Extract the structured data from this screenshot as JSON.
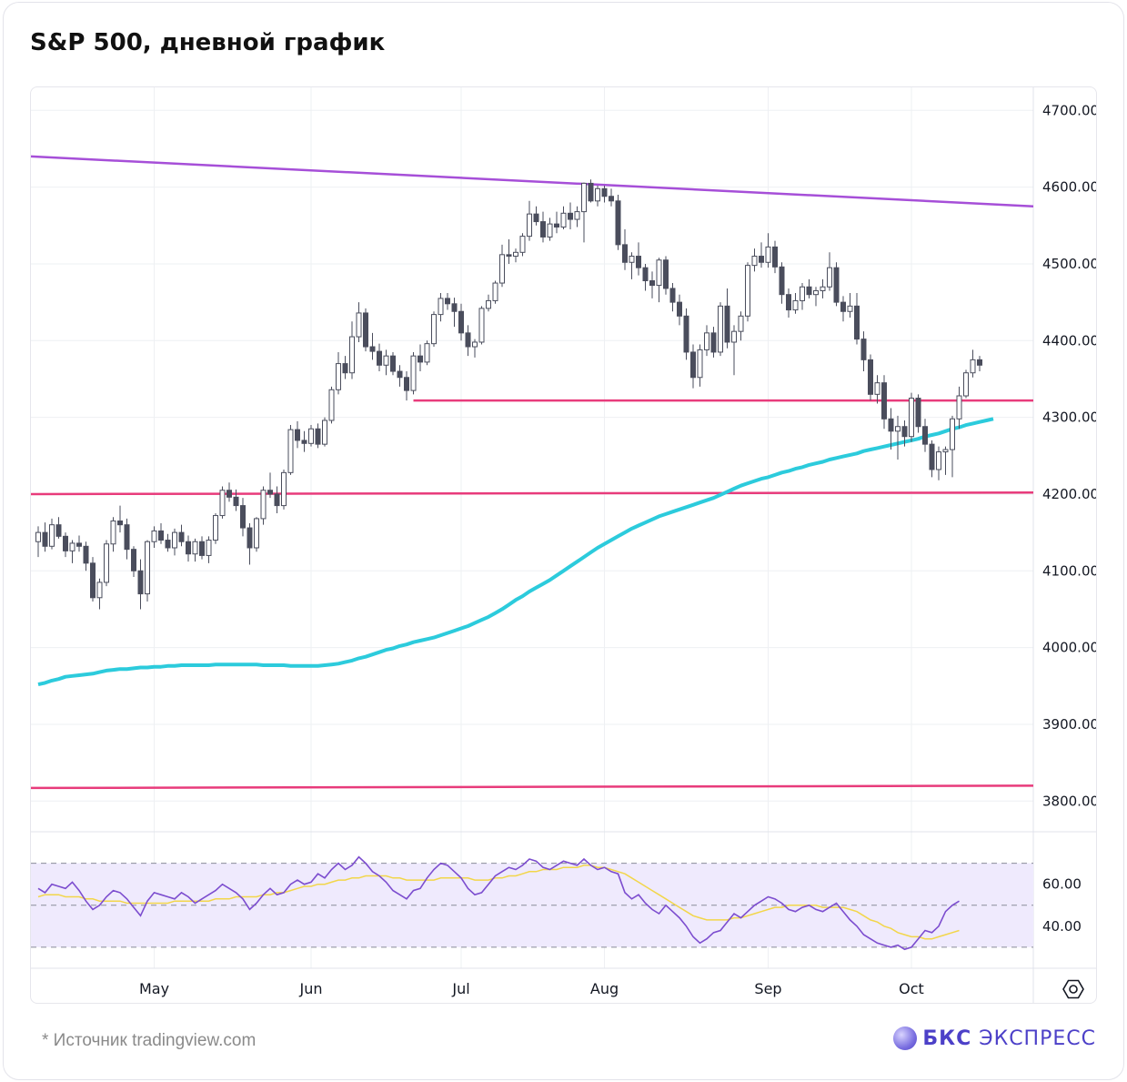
{
  "title": "S&P 500, дневной график",
  "footnote": "*  Источник tradingview.com",
  "brand": {
    "name_bold": "БКС",
    "name_rest": " ЭКСПРЕСС"
  },
  "icons": {
    "settings": "hexagon-gear-icon",
    "brand_logo": "sphere-logo-icon"
  },
  "colors": {
    "up_candle": "#ffffff",
    "down_candle": "#4a4d5c",
    "wick": "#4a4d5c",
    "ma": "#2ccbdc",
    "trend_top": "#a64fd8",
    "support": "#e83b7b",
    "rsi": "#7c4dcf",
    "rsi_ma": "#f2d64a",
    "rsi_band": "#efeafd"
  },
  "chart_data": {
    "type": "candlestick",
    "title": "S&P 500, дневной график",
    "x_labels": [
      "May",
      "Jun",
      "Jul",
      "Aug",
      "Sep",
      "Oct"
    ],
    "x_label_index": [
      17,
      40,
      62,
      83,
      107,
      128
    ],
    "y_ticks": [
      "4700.00",
      "4600.00",
      "4500.00",
      "4400.00",
      "4300.00",
      "4200.00",
      "4100.00",
      "4000.00",
      "3900.00",
      "3800.00"
    ],
    "ylim": [
      3760,
      4730
    ],
    "candles": [
      [
        4138,
        4158,
        4118,
        4150
      ],
      [
        4150,
        4163,
        4125,
        4132
      ],
      [
        4132,
        4168,
        4128,
        4160
      ],
      [
        4160,
        4170,
        4142,
        4145
      ],
      [
        4145,
        4150,
        4118,
        4126
      ],
      [
        4126,
        4140,
        4110,
        4136
      ],
      [
        4136,
        4146,
        4125,
        4132
      ],
      [
        4132,
        4138,
        4100,
        4110
      ],
      [
        4110,
        4118,
        4060,
        4065
      ],
      [
        4065,
        4090,
        4050,
        4085
      ],
      [
        4085,
        4140,
        4080,
        4135
      ],
      [
        4135,
        4170,
        4125,
        4165
      ],
      [
        4165,
        4185,
        4150,
        4160
      ],
      [
        4160,
        4168,
        4115,
        4128
      ],
      [
        4128,
        4132,
        4092,
        4100
      ],
      [
        4100,
        4115,
        4050,
        4070
      ],
      [
        4070,
        4140,
        4060,
        4138
      ],
      [
        4138,
        4158,
        4130,
        4152
      ],
      [
        4152,
        4162,
        4135,
        4140
      ],
      [
        4140,
        4148,
        4125,
        4130
      ],
      [
        4130,
        4155,
        4120,
        4150
      ],
      [
        4150,
        4160,
        4132,
        4138
      ],
      [
        4138,
        4146,
        4112,
        4122
      ],
      [
        4122,
        4142,
        4112,
        4138
      ],
      [
        4138,
        4145,
        4115,
        4120
      ],
      [
        4120,
        4145,
        4110,
        4140
      ],
      [
        4140,
        4175,
        4135,
        4172
      ],
      [
        4172,
        4210,
        4168,
        4205
      ],
      [
        4205,
        4215,
        4190,
        4196
      ],
      [
        4196,
        4206,
        4178,
        4185
      ],
      [
        4185,
        4195,
        4145,
        4156
      ],
      [
        4156,
        4162,
        4108,
        4130
      ],
      [
        4130,
        4170,
        4125,
        4168
      ],
      [
        4168,
        4210,
        4160,
        4205
      ],
      [
        4205,
        4228,
        4195,
        4200
      ],
      [
        4200,
        4210,
        4175,
        4185
      ],
      [
        4185,
        4232,
        4180,
        4228
      ],
      [
        4228,
        4290,
        4225,
        4284
      ],
      [
        4284,
        4295,
        4260,
        4270
      ],
      [
        4270,
        4282,
        4255,
        4266
      ],
      [
        4266,
        4290,
        4262,
        4285
      ],
      [
        4285,
        4292,
        4260,
        4265
      ],
      [
        4265,
        4300,
        4262,
        4296
      ],
      [
        4296,
        4340,
        4292,
        4336
      ],
      [
        4336,
        4385,
        4330,
        4370
      ],
      [
        4370,
        4380,
        4350,
        4358
      ],
      [
        4358,
        4425,
        4350,
        4405
      ],
      [
        4405,
        4450,
        4398,
        4436
      ],
      [
        4436,
        4442,
        4386,
        4392
      ],
      [
        4392,
        4410,
        4375,
        4386
      ],
      [
        4386,
        4396,
        4360,
        4368
      ],
      [
        4368,
        4388,
        4355,
        4380
      ],
      [
        4380,
        4385,
        4355,
        4360
      ],
      [
        4360,
        4368,
        4340,
        4352
      ],
      [
        4352,
        4360,
        4322,
        4335
      ],
      [
        4335,
        4385,
        4330,
        4380
      ],
      [
        4380,
        4395,
        4360,
        4372
      ],
      [
        4372,
        4400,
        4368,
        4396
      ],
      [
        4396,
        4438,
        4392,
        4434
      ],
      [
        4434,
        4462,
        4425,
        4455
      ],
      [
        4455,
        4462,
        4440,
        4448
      ],
      [
        4448,
        4456,
        4418,
        4438
      ],
      [
        4438,
        4448,
        4400,
        4410
      ],
      [
        4410,
        4420,
        4380,
        4392
      ],
      [
        4392,
        4402,
        4378,
        4398
      ],
      [
        4398,
        4445,
        4395,
        4442
      ],
      [
        4442,
        4460,
        4438,
        4452
      ],
      [
        4452,
        4478,
        4448,
        4475
      ],
      [
        4475,
        4525,
        4470,
        4512
      ],
      [
        4512,
        4532,
        4500,
        4510
      ],
      [
        4510,
        4520,
        4502,
        4515
      ],
      [
        4515,
        4540,
        4510,
        4536
      ],
      [
        4536,
        4582,
        4530,
        4565
      ],
      [
        4565,
        4575,
        4550,
        4555
      ],
      [
        4555,
        4568,
        4528,
        4535
      ],
      [
        4535,
        4560,
        4530,
        4552
      ],
      [
        4552,
        4568,
        4540,
        4548
      ],
      [
        4548,
        4575,
        4545,
        4566
      ],
      [
        4566,
        4580,
        4545,
        4558
      ],
      [
        4558,
        4575,
        4548,
        4568
      ],
      [
        4568,
        4606,
        4528,
        4605
      ],
      [
        4605,
        4610,
        4580,
        4582
      ],
      [
        4582,
        4602,
        4575,
        4598
      ],
      [
        4598,
        4602,
        4580,
        4588
      ],
      [
        4588,
        4598,
        4575,
        4582
      ],
      [
        4582,
        4590,
        4518,
        4525
      ],
      [
        4525,
        4545,
        4492,
        4502
      ],
      [
        4502,
        4515,
        4480,
        4510
      ],
      [
        4510,
        4528,
        4485,
        4495
      ],
      [
        4495,
        4500,
        4465,
        4478
      ],
      [
        4478,
        4490,
        4455,
        4472
      ],
      [
        4472,
        4508,
        4450,
        4505
      ],
      [
        4505,
        4510,
        4460,
        4468
      ],
      [
        4468,
        4475,
        4438,
        4450
      ],
      [
        4450,
        4460,
        4420,
        4432
      ],
      [
        4432,
        4442,
        4375,
        4385
      ],
      [
        4385,
        4395,
        4338,
        4352
      ],
      [
        4352,
        4395,
        4340,
        4388
      ],
      [
        4388,
        4420,
        4380,
        4410
      ],
      [
        4410,
        4418,
        4378,
        4385
      ],
      [
        4385,
        4450,
        4380,
        4445
      ],
      [
        4445,
        4468,
        4390,
        4398
      ],
      [
        4398,
        4420,
        4355,
        4412
      ],
      [
        4412,
        4438,
        4400,
        4432
      ],
      [
        4432,
        4502,
        4425,
        4498
      ],
      [
        4498,
        4520,
        4490,
        4510
      ],
      [
        4510,
        4528,
        4495,
        4502
      ],
      [
        4502,
        4540,
        4495,
        4522
      ],
      [
        4522,
        4530,
        4488,
        4496
      ],
      [
        4496,
        4502,
        4448,
        4460
      ],
      [
        4460,
        4468,
        4430,
        4440
      ],
      [
        4440,
        4462,
        4435,
        4452
      ],
      [
        4452,
        4475,
        4440,
        4470
      ],
      [
        4470,
        4480,
        4455,
        4460
      ],
      [
        4460,
        4470,
        4445,
        4465
      ],
      [
        4465,
        4480,
        4455,
        4470
      ],
      [
        4470,
        4515,
        4465,
        4495
      ],
      [
        4495,
        4502,
        4445,
        4450
      ],
      [
        4450,
        4458,
        4425,
        4438
      ],
      [
        4438,
        4462,
        4430,
        4445
      ],
      [
        4445,
        4462,
        4395,
        4402
      ],
      [
        4402,
        4412,
        4360,
        4375
      ],
      [
        4375,
        4382,
        4322,
        4330
      ],
      [
        4330,
        4355,
        4318,
        4345
      ],
      [
        4345,
        4355,
        4285,
        4298
      ],
      [
        4298,
        4312,
        4258,
        4282
      ],
      [
        4282,
        4302,
        4245,
        4288
      ],
      [
        4288,
        4296,
        4262,
        4275
      ],
      [
        4275,
        4332,
        4268,
        4325
      ],
      [
        4325,
        4330,
        4280,
        4288
      ],
      [
        4288,
        4298,
        4255,
        4265
      ],
      [
        4265,
        4270,
        4222,
        4232
      ],
      [
        4232,
        4262,
        4218,
        4255
      ],
      [
        4255,
        4262,
        4225,
        4258
      ],
      [
        4258,
        4302,
        4222,
        4298
      ],
      [
        4298,
        4340,
        4285,
        4328
      ],
      [
        4328,
        4362,
        4325,
        4358
      ],
      [
        4358,
        4388,
        4352,
        4375
      ],
      [
        4375,
        4380,
        4360,
        4368
      ]
    ],
    "series": [
      {
        "values": [
          3952,
          3954,
          3957,
          3959,
          3962,
          3963,
          3964,
          3965,
          3966,
          3968,
          3970,
          3971,
          3972,
          3972,
          3973,
          3974,
          3974,
          3975,
          3975,
          3976,
          3976,
          3977,
          3977,
          3977,
          3977,
          3977,
          3978,
          3978,
          3978,
          3978,
          3978,
          3978,
          3978,
          3977,
          3977,
          3977,
          3977,
          3976,
          3976,
          3976,
          3976,
          3976,
          3977,
          3978,
          3979,
          3981,
          3983,
          3986,
          3988,
          3991,
          3994,
          3997,
          3999,
          4002,
          4004,
          4007,
          4009,
          4011,
          4013,
          4016,
          4019,
          4022,
          4025,
          4028,
          4032,
          4036,
          4040,
          4045,
          4050,
          4056,
          4062,
          4067,
          4073,
          4078,
          4083,
          4088,
          4094,
          4100,
          4106,
          4112,
          4118,
          4124,
          4130,
          4135,
          4140,
          4145,
          4150,
          4155,
          4159,
          4163,
          4167,
          4171,
          4174,
          4177,
          4180,
          4183,
          4186,
          4189,
          4192,
          4195,
          4199,
          4203,
          4207,
          4211,
          4214,
          4217,
          4220,
          4222,
          4225,
          4228,
          4230,
          4233,
          4235,
          4238,
          4240,
          4242,
          4245,
          4247,
          4249,
          4251,
          4253,
          4256,
          4258,
          4260,
          4262,
          4264,
          4266,
          4268,
          4270,
          4272,
          4275,
          4277,
          4279,
          4282,
          4285,
          4287,
          4290,
          4292,
          4294,
          4296,
          4298
        ]
      },
      {
        "values": [
          4640,
          4575
        ]
      },
      {
        "values": [
          4322,
          4322
        ]
      },
      {
        "values": [
          4200,
          4202
        ]
      },
      {
        "values": [
          3817,
          3820
        ]
      }
    ],
    "rsi": {
      "y_ticks": [
        "60.00",
        "40.00"
      ],
      "ylim": [
        20,
        85
      ],
      "band": [
        30,
        70
      ],
      "mid": 50,
      "values": [
        58,
        56,
        60,
        59,
        58,
        61,
        57,
        52,
        48,
        50,
        54,
        57,
        56,
        53,
        49,
        45,
        52,
        56,
        55,
        54,
        53,
        56,
        54,
        51,
        53,
        55,
        57,
        60,
        58,
        56,
        53,
        48,
        51,
        55,
        58,
        55,
        56,
        60,
        62,
        60,
        61,
        65,
        63,
        67,
        70,
        67,
        69,
        73,
        70,
        66,
        64,
        61,
        57,
        55,
        53,
        57,
        58,
        63,
        67,
        70,
        69,
        66,
        63,
        58,
        55,
        56,
        60,
        64,
        66,
        68,
        67,
        69,
        72,
        71,
        68,
        67,
        69,
        71,
        70,
        69,
        72,
        69,
        67,
        68,
        66,
        65,
        56,
        53,
        55,
        51,
        48,
        46,
        50,
        47,
        44,
        40,
        35,
        32,
        34,
        37,
        38,
        42,
        46,
        44,
        47,
        50,
        52,
        54,
        53,
        51,
        48,
        47,
        49,
        50,
        48,
        47,
        49,
        51,
        47,
        43,
        40,
        36,
        34,
        32,
        31,
        30,
        31,
        29,
        30,
        34,
        38,
        37,
        40,
        47,
        50,
        52
      ]
    },
    "rsi_ma": [
      54,
      55,
      55,
      55,
      54,
      54,
      54,
      53,
      53,
      52,
      52,
      52,
      52,
      51,
      51,
      51,
      51,
      51,
      51,
      51,
      52,
      52,
      52,
      52,
      52,
      52,
      53,
      53,
      53,
      54,
      54,
      54,
      54,
      55,
      55,
      56,
      56,
      57,
      58,
      59,
      59,
      60,
      60,
      61,
      62,
      62,
      63,
      63,
      64,
      64,
      64,
      64,
      63,
      63,
      62,
      62,
      62,
      62,
      62,
      63,
      63,
      63,
      63,
      63,
      62,
      62,
      62,
      63,
      63,
      64,
      64,
      65,
      66,
      66,
      67,
      67,
      67,
      68,
      68,
      68,
      69,
      69,
      68,
      68,
      67,
      66,
      65,
      63,
      61,
      59,
      57,
      55,
      53,
      51,
      49,
      47,
      45,
      44,
      43,
      43,
      43,
      43,
      44,
      44,
      45,
      46,
      47,
      48,
      49,
      49,
      50,
      50,
      50,
      50,
      50,
      49,
      49,
      49,
      49,
      48,
      47,
      45,
      43,
      42,
      40,
      39,
      37,
      36,
      35,
      35,
      34,
      34,
      35,
      36,
      37,
      38
    ]
  }
}
